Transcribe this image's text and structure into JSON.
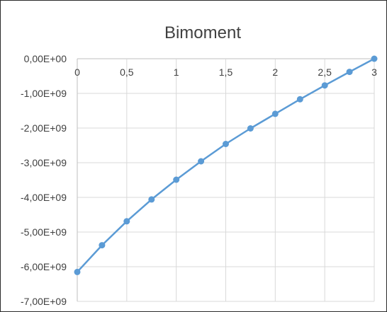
{
  "chart_data": {
    "type": "line",
    "title": "Bimoment",
    "xlabel": "",
    "ylabel": "",
    "x_ticks": [
      "0",
      "0,5",
      "1",
      "1,5",
      "2",
      "2,5",
      "3"
    ],
    "y_ticks": [
      "0,00E+00",
      "-1,00E+09",
      "-2,00E+09",
      "-3,00E+09",
      "-4,00E+09",
      "-5,00E+09",
      "-6,00E+09",
      "-7,00E+09"
    ],
    "xlim": [
      0,
      3
    ],
    "ylim": [
      -7000000000,
      0
    ],
    "grid": true,
    "legend": "none",
    "colors": {
      "series": "#5b9bd5",
      "grid": "#d9d9d9",
      "text": "#404040"
    },
    "series": [
      {
        "x": [
          0,
          0.25,
          0.5,
          0.75,
          1,
          1.25,
          1.5,
          1.75,
          2,
          2.25,
          2.5,
          2.75,
          3
        ],
        "values": [
          -6150000000,
          -5380000000,
          -4690000000,
          -4060000000,
          -3490000000,
          -2960000000,
          -2460000000,
          -2010000000,
          -1590000000,
          -1170000000,
          -770000000,
          -380000000,
          0
        ]
      }
    ]
  }
}
